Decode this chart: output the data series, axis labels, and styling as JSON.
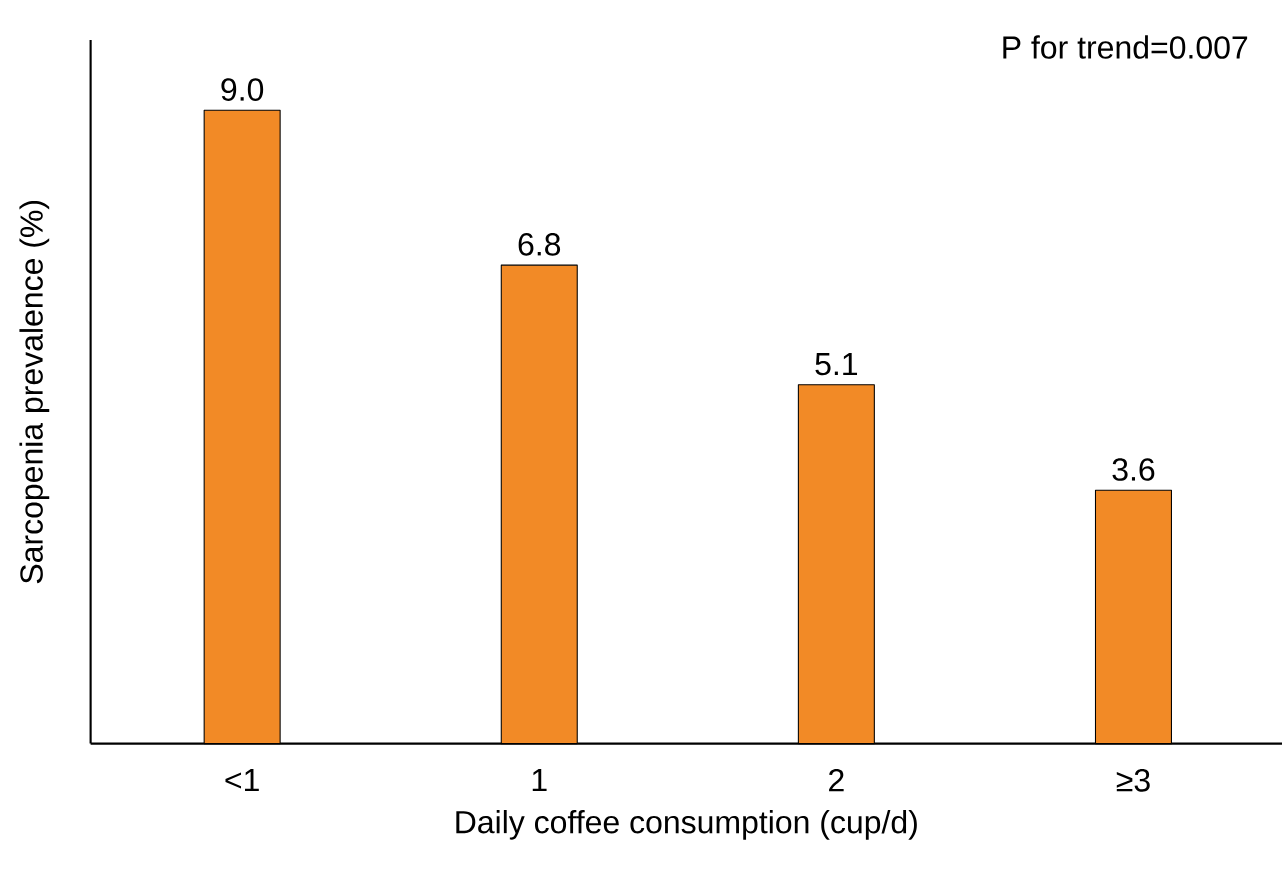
{
  "chart_data": {
    "type": "bar",
    "xlabel": "Daily coffee consumption (cup/d)",
    "ylabel": "Sarcopenia prevalence (%)",
    "categories": [
      "<1",
      "1",
      "2",
      "≥3"
    ],
    "values": [
      9.0,
      6.8,
      5.1,
      3.6
    ],
    "value_labels": [
      "9.0",
      "6.8",
      "5.1",
      "3.6"
    ],
    "color": "#f28a26",
    "ylim": [
      0,
      10
    ],
    "annotations": [
      "P for trend=0.007"
    ],
    "grid": false
  }
}
